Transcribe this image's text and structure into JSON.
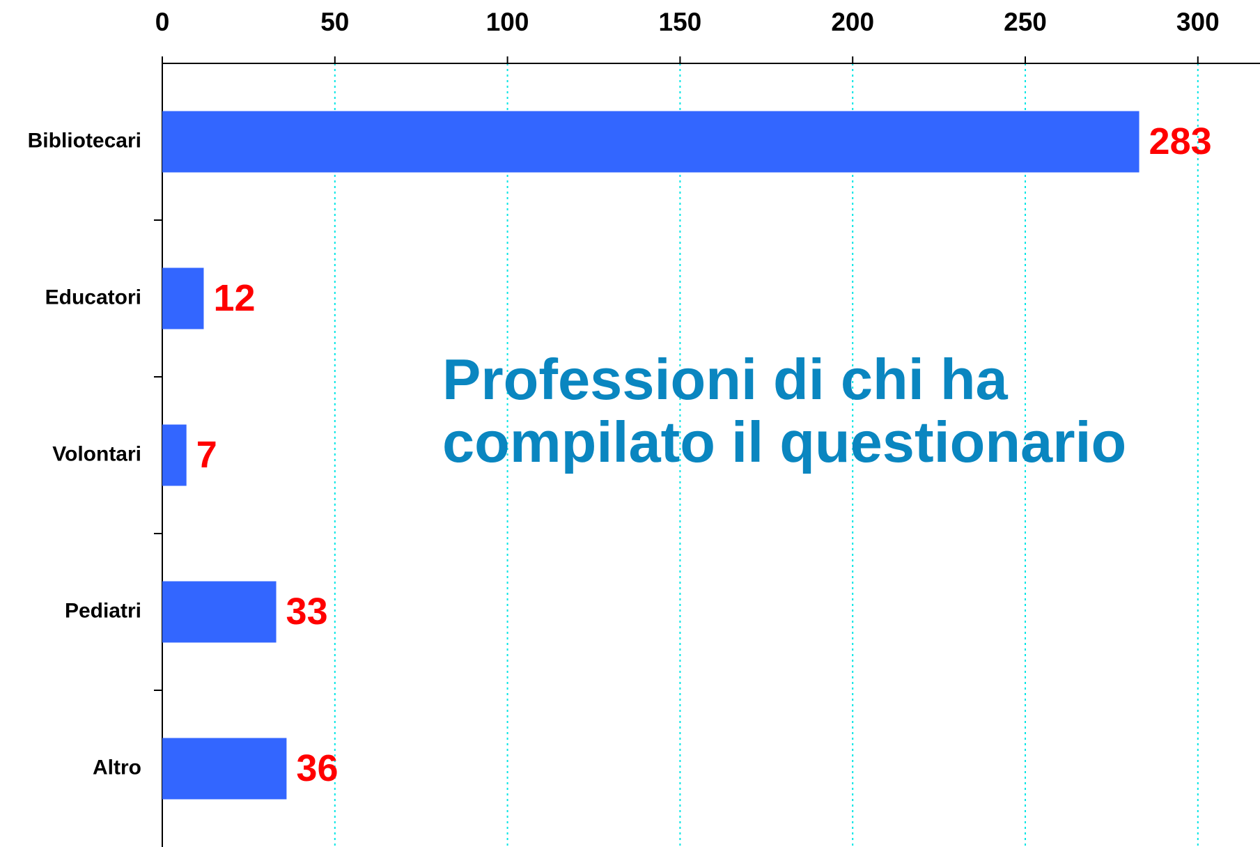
{
  "chart_data": {
    "type": "bar",
    "orientation": "horizontal",
    "title": "Professioni di chi ha compilato il questionario",
    "categories": [
      "Bibliotecari",
      "Educatori",
      "Volontari",
      "Pediatri",
      "Altro"
    ],
    "values": [
      283,
      12,
      7,
      33,
      36
    ],
    "color": "#3366ff",
    "label_color": "#ff0000",
    "title_color": "#0a86c0",
    "grid_color": "#00e5e5",
    "xlim": [
      0,
      318
    ],
    "xticks": [
      0,
      50,
      100,
      150,
      200,
      250,
      300
    ],
    "grid": true
  }
}
